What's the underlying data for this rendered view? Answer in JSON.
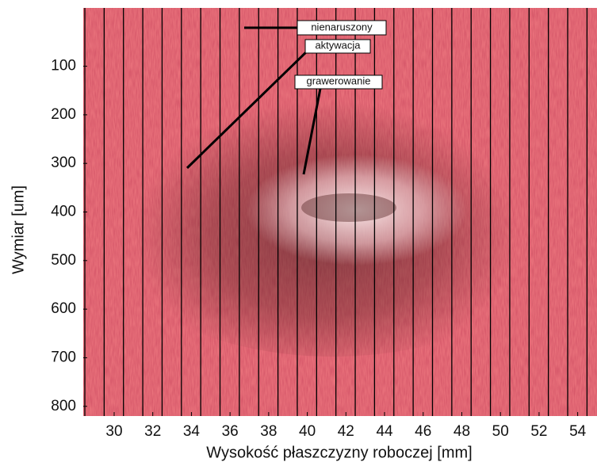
{
  "chart_data": {
    "type": "image",
    "xlabel": "Wysokość płaszczyzny roboczej [mm]",
    "ylabel": "Wymiar [um]",
    "xlim": [
      28.4,
      55
    ],
    "xticks": [
      30,
      32,
      34,
      36,
      38,
      40,
      42,
      44,
      46,
      48,
      50,
      52,
      54
    ],
    "ylim": [
      -20,
      820
    ],
    "y_inverted": true,
    "yticks": [
      100,
      200,
      300,
      400,
      500,
      600,
      700,
      800
    ],
    "annotations": [
      "nienaruszony",
      "aktywacja",
      "grawerowanie"
    ]
  }
}
